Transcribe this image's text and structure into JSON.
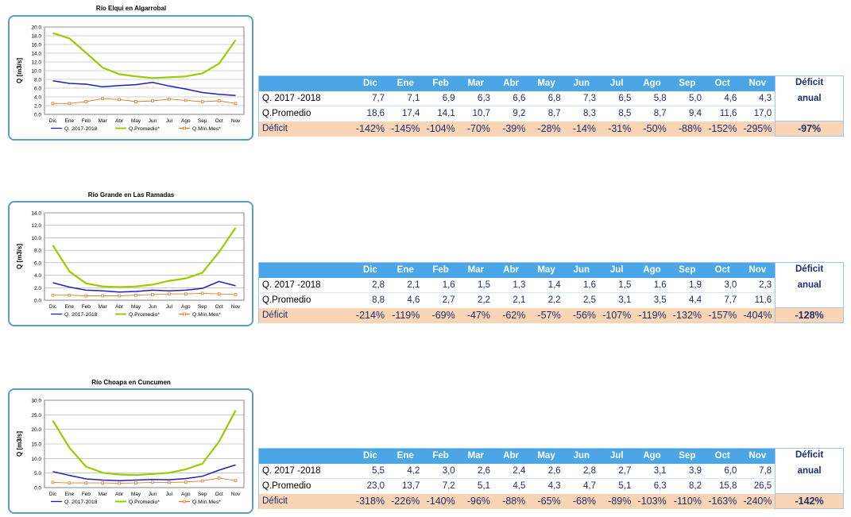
{
  "months": [
    "Dic",
    "Ene",
    "Feb",
    "Mar",
    "Abr",
    "May",
    "Jun",
    "Jul",
    "Ago",
    "Sep",
    "Oct",
    "Nov"
  ],
  "row_labels": {
    "q": "Q. 2017 -2018",
    "prom": "Q.Promedio",
    "def": "Déficit"
  },
  "annual_label_1": "Déficit",
  "annual_label_2": "anual",
  "colors": {
    "q": "#1f1fbf",
    "prom": "#99cc00",
    "min": "#e07a28",
    "header": "#4aa6e6",
    "deficit_bg": "#f9d5b6",
    "annual_bg": "#76923c"
  },
  "sections": [
    {
      "title": "Río Elqui en Algarrobal",
      "q_row": [
        "7,7",
        "7,1",
        "6,9",
        "6,3",
        "6,6",
        "6,8",
        "7,3",
        "6,5",
        "5,8",
        "5,0",
        "4,6",
        "4,3"
      ],
      "prom_row": [
        "18,6",
        "17,4",
        "14,1",
        "10,7",
        "9,2",
        "8,7",
        "8,3",
        "8,5",
        "8,7",
        "9,4",
        "11,6",
        "17,0"
      ],
      "def_row": [
        "-142%",
        "-145%",
        "-104%",
        "-70%",
        "-39%",
        "-28%",
        "-14%",
        "-31%",
        "-50%",
        "-88%",
        "-152%",
        "-295%"
      ],
      "annual": "-97%",
      "chart_data": {
        "type": "line",
        "title": "Río Elqui en Algarrobal",
        "ylabel": "Q [m3/s]",
        "categories": [
          "Dic",
          "Ene",
          "Feb",
          "Mar",
          "Abr",
          "May",
          "Jun",
          "Jul",
          "Ago",
          "Sep",
          "Oct",
          "Nov"
        ],
        "ylim": [
          0,
          20
        ],
        "yticks": [
          "0.0",
          "2.0",
          "4.0",
          "6.0",
          "8.0",
          "10.0",
          "12.0",
          "14.0",
          "16.0",
          "18.0",
          "20.0"
        ],
        "ytick_values": [
          0,
          2,
          4,
          6,
          8,
          10,
          12,
          14,
          16,
          18,
          20
        ],
        "grid": true,
        "legend_position": "bottom",
        "series": [
          {
            "name": "Q. 2017-2018",
            "color": "#1f1fbf",
            "values": [
              7.7,
              7.1,
              6.9,
              6.3,
              6.6,
              6.8,
              7.3,
              6.5,
              5.8,
              5.0,
              4.6,
              4.3
            ]
          },
          {
            "name": "Q.Promedio*",
            "color": "#99cc00",
            "values": [
              18.6,
              17.4,
              14.1,
              10.7,
              9.2,
              8.7,
              8.3,
              8.5,
              8.7,
              9.4,
              11.6,
              17.0
            ]
          },
          {
            "name": "Q.Mín.Mes*",
            "color": "#e07a28",
            "values": [
              2.5,
              2.5,
              2.9,
              3.6,
              3.4,
              2.9,
              3.1,
              3.5,
              3.2,
              2.9,
              3.1,
              2.5
            ]
          }
        ]
      }
    },
    {
      "title": "Río Grande en Las Ramadas",
      "q_row": [
        "2,8",
        "2,1",
        "1,6",
        "1,5",
        "1,3",
        "1,4",
        "1,6",
        "1,5",
        "1,6",
        "1,9",
        "3,0",
        "2,3"
      ],
      "prom_row": [
        "8,8",
        "4,6",
        "2,7",
        "2,2",
        "2,1",
        "2,2",
        "2,5",
        "3,1",
        "3,5",
        "4,4",
        "7,7",
        "11,6"
      ],
      "def_row": [
        "-214%",
        "-119%",
        "-69%",
        "-47%",
        "-62%",
        "-57%",
        "-56%",
        "-107%",
        "-119%",
        "-132%",
        "-157%",
        "-404%"
      ],
      "annual": "-128%",
      "chart_data": {
        "type": "line",
        "title": "Río Grande en Las Ramadas",
        "ylabel": "Q [m3/s]",
        "categories": [
          "Dic",
          "Ene",
          "Feb",
          "Mar",
          "Abr",
          "May",
          "Jun",
          "Jul",
          "Ago",
          "Sep",
          "Oct",
          "Nov"
        ],
        "ylim": [
          0,
          14
        ],
        "yticks": [
          "0.0",
          "2.0",
          "4.0",
          "6.0",
          "8.0",
          "10.0",
          "12.0",
          "14.0"
        ],
        "ytick_values": [
          0,
          2,
          4,
          6,
          8,
          10,
          12,
          14
        ],
        "grid": true,
        "legend_position": "bottom",
        "series": [
          {
            "name": "Q. 2017-2018",
            "color": "#1f1fbf",
            "values": [
              2.8,
              2.1,
              1.6,
              1.5,
              1.3,
              1.4,
              1.6,
              1.5,
              1.6,
              1.9,
              3.0,
              2.3
            ]
          },
          {
            "name": "Q.Promedio*",
            "color": "#99cc00",
            "values": [
              8.8,
              4.6,
              2.7,
              2.2,
              2.1,
              2.2,
              2.5,
              3.1,
              3.5,
              4.4,
              7.7,
              11.6
            ]
          },
          {
            "name": "Q.Mín.Mes*",
            "color": "#e07a28",
            "values": [
              0.8,
              0.8,
              0.7,
              0.7,
              0.7,
              0.8,
              0.9,
              1.0,
              1.0,
              1.1,
              1.0,
              0.9
            ]
          }
        ]
      }
    },
    {
      "title": "Río Choapa en Cuncumen",
      "q_row": [
        "5,5",
        "4,2",
        "3,0",
        "2,6",
        "2,4",
        "2,6",
        "2,8",
        "2,7",
        "3,1",
        "3,9",
        "6,0",
        "7,8"
      ],
      "prom_row": [
        "23,0",
        "13,7",
        "7,2",
        "5,1",
        "4,5",
        "4,3",
        "4,7",
        "5,1",
        "6,3",
        "8,2",
        "15,8",
        "26,5"
      ],
      "def_row": [
        "-318%",
        "-226%",
        "-140%",
        "-96%",
        "-88%",
        "-65%",
        "-68%",
        "-89%",
        "-103%",
        "-110%",
        "-163%",
        "-240%"
      ],
      "annual": "-142%",
      "chart_data": {
        "type": "line",
        "title": "Río Choapa en Cuncumen",
        "ylabel": "Q [m3/s]",
        "categories": [
          "Dic",
          "Ene",
          "Feb",
          "Mar",
          "Abr",
          "May",
          "Jun",
          "Jul",
          "Ago",
          "Sep",
          "Oct",
          "Nov"
        ],
        "ylim": [
          0,
          30
        ],
        "yticks": [
          "0.0",
          "5.0",
          "10.0",
          "15.0",
          "20.0",
          "25.0",
          "30.0"
        ],
        "ytick_values": [
          0,
          5,
          10,
          15,
          20,
          25,
          30
        ],
        "grid": true,
        "legend_position": "bottom",
        "series": [
          {
            "name": "Q. 2017-2018",
            "color": "#1f1fbf",
            "values": [
              5.5,
              4.2,
              3.0,
              2.6,
              2.4,
              2.6,
              2.8,
              2.7,
              3.1,
              3.9,
              6.0,
              7.8
            ]
          },
          {
            "name": "Q.Promedio*",
            "color": "#99cc00",
            "values": [
              23.0,
              13.7,
              7.2,
              5.1,
              4.5,
              4.3,
              4.7,
              5.1,
              6.3,
              8.2,
              15.8,
              26.5
            ]
          },
          {
            "name": "Q.Mín.Mes*",
            "color": "#e07a28",
            "values": [
              1.8,
              1.6,
              1.6,
              1.6,
              1.5,
              1.6,
              1.8,
              1.8,
              1.9,
              2.3,
              3.3,
              2.4
            ]
          }
        ]
      }
    }
  ]
}
